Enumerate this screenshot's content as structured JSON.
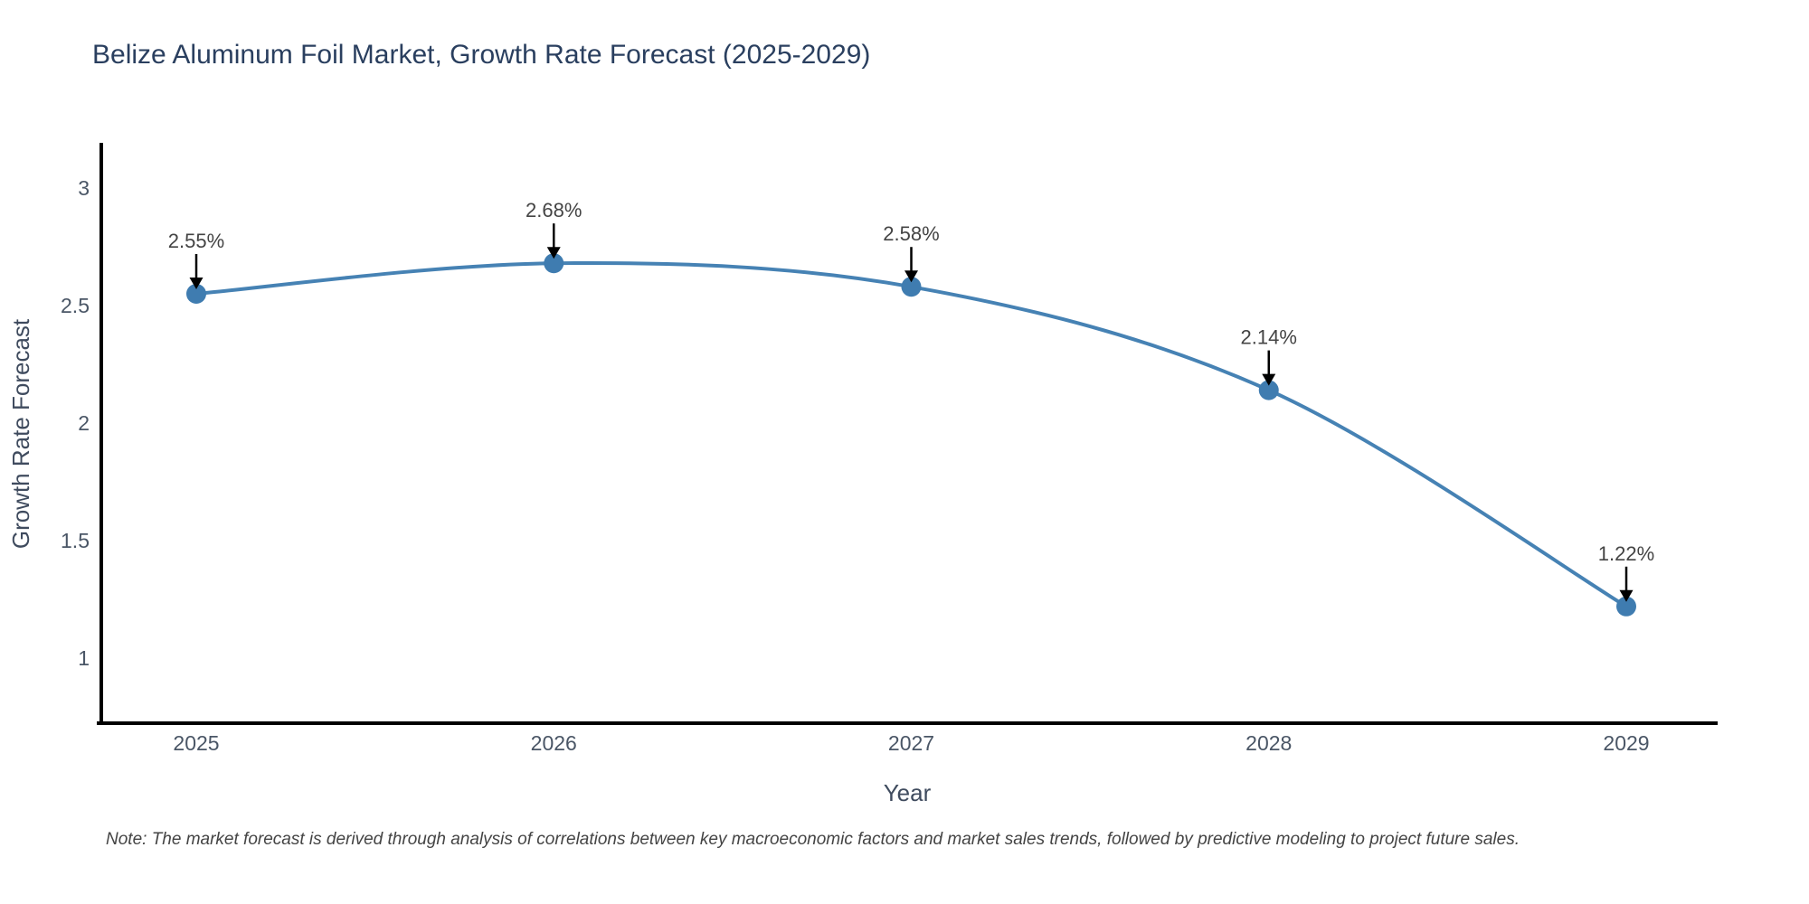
{
  "page": {
    "title": "Belize Aluminum Foil Market, Growth Rate Forecast (2025-2029)",
    "note": "Note: The market forecast is derived through analysis of correlations between key macroeconomic factors and market sales trends, followed by predictive modeling to project future sales."
  },
  "chart_data": {
    "type": "line",
    "title": "Belize Aluminum Foil Market, Growth Rate Forecast (2025-2029)",
    "x": [
      2025,
      2026,
      2027,
      2028,
      2029
    ],
    "series": [
      {
        "name": "Growth Rate Forecast",
        "values": [
          2.55,
          2.68,
          2.58,
          2.14,
          1.22
        ]
      }
    ],
    "point_labels": [
      "2.55%",
      "2.68%",
      "2.58%",
      "2.14%",
      "1.22%"
    ],
    "xlabel": "Year",
    "ylabel": "Growth Rate Forecast",
    "yticks": [
      3,
      2.5,
      2,
      1.5,
      1
    ],
    "ylim": [
      0.72,
      3.18
    ],
    "line_shape": "spline",
    "grid": false,
    "legend_position": "none",
    "colors": {
      "line": "#4682b4",
      "marker": "#3f7cb0",
      "axis": "#000000",
      "tick_label": "#4a5666",
      "axis_title": "#3f4b5e",
      "chart_title": "#2a3f5f",
      "annotation": "#444444"
    }
  }
}
